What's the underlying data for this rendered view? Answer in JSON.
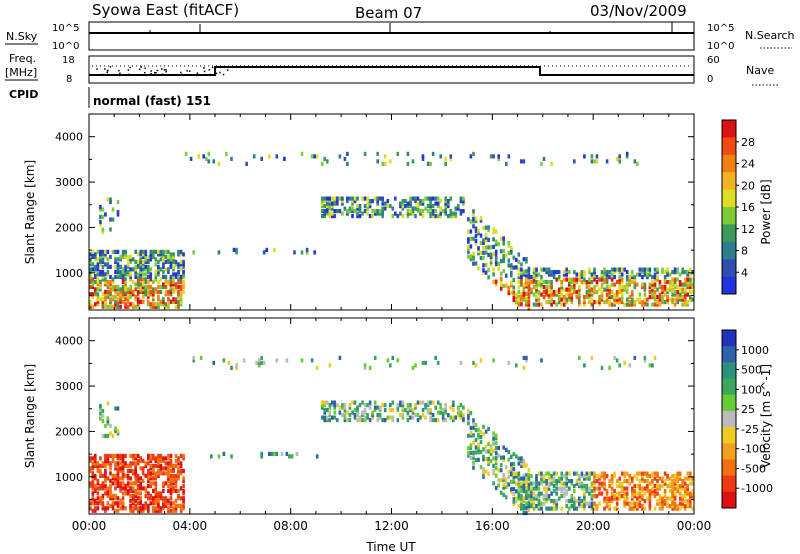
{
  "header": {
    "station": "Syowa East (fitACF)",
    "beam": "Beam 07",
    "date": "03/Nov/2009"
  },
  "top_panels": {
    "nsky_label": "N.Sky",
    "nsky_ticks": [
      "10^5",
      "10^0"
    ],
    "nsearch_label": "N.Search",
    "nsearch_ticks": [
      "10^5",
      "10^0"
    ],
    "freq_label": [
      "Freq.",
      "[MHz]"
    ],
    "freq_ticks": [
      "18",
      "8"
    ],
    "nave_label": "Nave",
    "nave_ticks": [
      "60",
      "0"
    ],
    "cpid_label": "CPID",
    "cpid_text": "normal (fast) 151"
  },
  "chart_data": [
    {
      "type": "heatmap",
      "panel": "power",
      "ylabel": "Slant Range [km]",
      "xlabel": "",
      "xlim": [
        "00:00",
        "00:00"
      ],
      "ylim": [
        180,
        4500
      ],
      "yticks": [
        1000,
        2000,
        3000,
        4000
      ],
      "colorbar": {
        "label": "Power [dB]",
        "ticks": [
          "4",
          "8",
          "12",
          "16",
          "20",
          "24",
          "28"
        ],
        "colors": [
          "#2233dd",
          "#2e4fb0",
          "#2e7d8f",
          "#3a9a5c",
          "#7ccc3a",
          "#dddd22",
          "#f2b320",
          "#f28010",
          "#ee4a12",
          "#dd1111"
        ]
      }
    },
    {
      "type": "heatmap",
      "panel": "velocity",
      "ylabel": "Slant Range [km]",
      "xlabel": "Time UT",
      "xlim": [
        "00:00",
        "00:00"
      ],
      "ylim": [
        180,
        4500
      ],
      "yticks": [
        1000,
        2000,
        3000,
        4000
      ],
      "xticks": [
        "00:00",
        "04:00",
        "08:00",
        "12:00",
        "16:00",
        "20:00",
        "00:00"
      ],
      "colorbar": {
        "label": "Velocity [m s^-1]",
        "ticks": [
          "1000",
          "500",
          "100",
          "25",
          "-25",
          "-100",
          "-500",
          "-1000"
        ],
        "colors": [
          "#2233bb",
          "#2e62a8",
          "#2e8f7a",
          "#3aa85c",
          "#66cc33",
          "#bbbbbb",
          "#eecc22",
          "#f2a020",
          "#f27010",
          "#ee3a12",
          "#dd1111"
        ]
      }
    }
  ]
}
